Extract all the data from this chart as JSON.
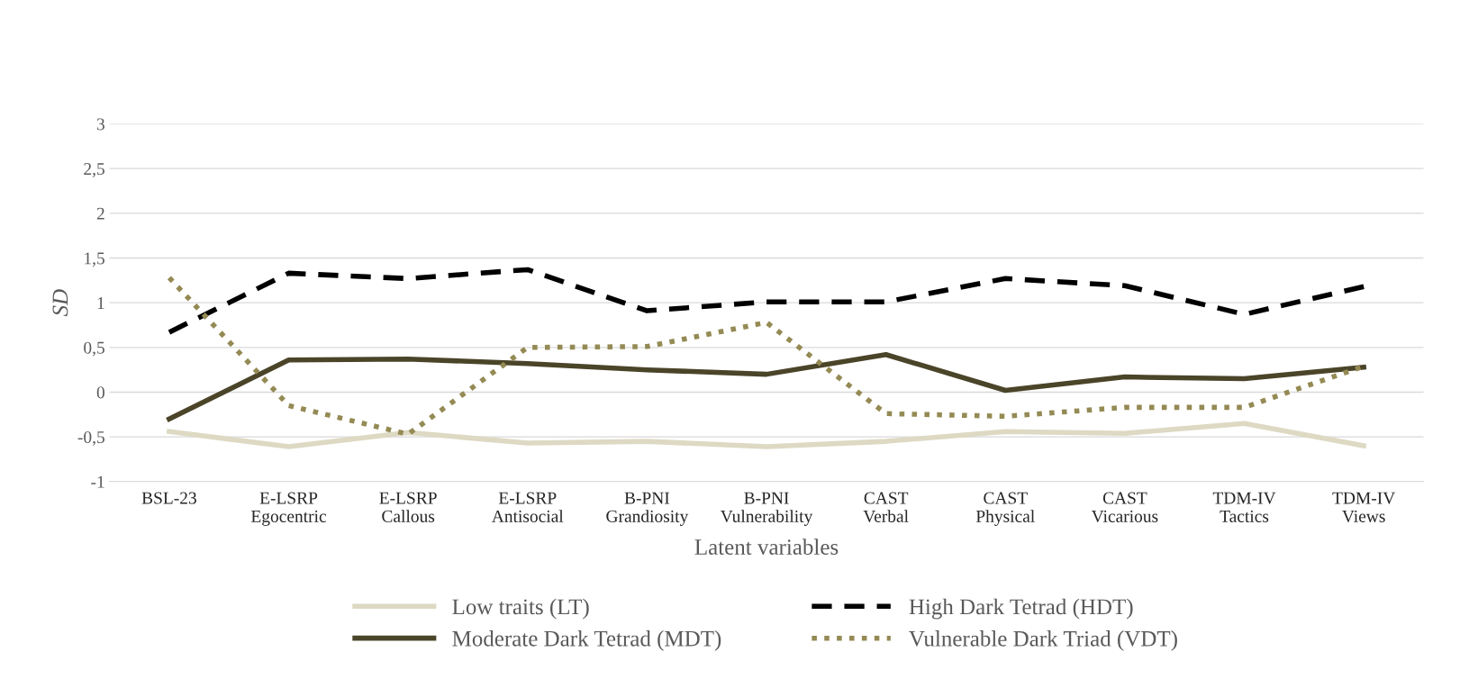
{
  "chart_data": {
    "type": "line",
    "xlabel": "Latent variables",
    "ylabel": "SD",
    "categories": [
      "BSL-23",
      "E-LSRP\nEgocentric",
      "E-LSRP\nCallous",
      "E-LSRP\nAntisocial",
      "B-PNI\nGrandiosity",
      "B-PNI\nVulnerability",
      "CAST\nVerbal",
      "CAST\nPhysical",
      "CAST\nVicarious",
      "TDM-IV\nTactics",
      "TDM-IV\nViews"
    ],
    "series": [
      {
        "name": "Low traits (LT)",
        "color": "#ddd9c3",
        "line_style": "solid",
        "values": [
          -0.44,
          -0.61,
          -0.45,
          -0.57,
          -0.55,
          -0.61,
          -0.55,
          -0.44,
          -0.46,
          -0.35,
          -0.6
        ]
      },
      {
        "name": "Moderate Dark Tetrad (MDT)",
        "color": "#4a4429",
        "line_style": "solid",
        "values": [
          -0.3,
          0.36,
          0.37,
          0.32,
          0.25,
          0.2,
          0.42,
          0.02,
          0.17,
          0.15,
          0.28
        ]
      },
      {
        "name": "High Dark Tetrad (HDT)",
        "color": "#000000",
        "line_style": "dashed",
        "values": [
          0.67,
          1.33,
          1.27,
          1.37,
          0.91,
          1.01,
          1.01,
          1.27,
          1.19,
          0.87,
          1.18
        ]
      },
      {
        "name": "Vulnerable Dark Triad (VDT)",
        "color": "#948a54",
        "line_style": "dotted",
        "values": [
          1.28,
          -0.15,
          -0.47,
          0.5,
          0.51,
          0.78,
          -0.24,
          -0.27,
          -0.17,
          -0.17,
          0.29
        ]
      }
    ],
    "ylim": [
      -1,
      3
    ],
    "yticks": [
      -1,
      {
        "value": -0.5,
        "label": "-0,5"
      },
      0,
      {
        "value": 0.5,
        "label": "0,5"
      },
      1,
      {
        "value": 1.5,
        "label": "1,5"
      },
      2,
      {
        "value": 2.5,
        "label": "2,5"
      },
      3
    ],
    "grid": "y",
    "legend": "bottom",
    "marker": "none"
  }
}
